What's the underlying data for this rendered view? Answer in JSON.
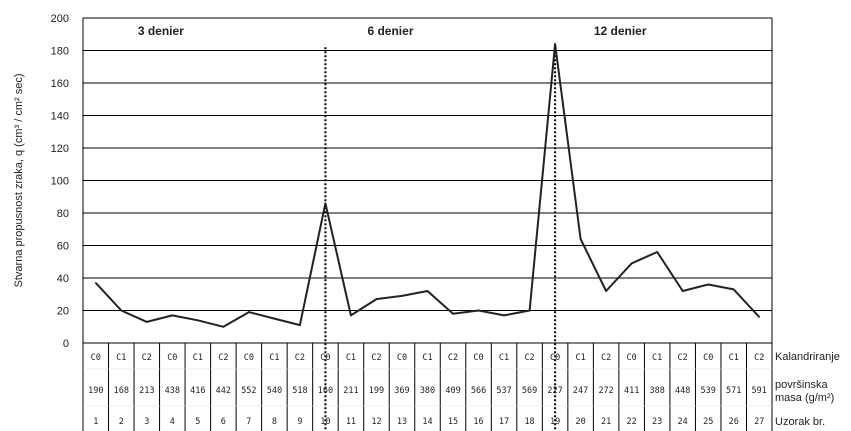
{
  "chart_data": {
    "type": "line",
    "ylabel": "Stvarna propusnost zraka, q (cm³ / cm² sec)",
    "ylim": [
      0,
      200
    ],
    "yticks": [
      0,
      20,
      40,
      60,
      80,
      100,
      120,
      140,
      160,
      180,
      200
    ],
    "grid": true,
    "groups": [
      {
        "label": "3 denier",
        "start": 1,
        "end": 9
      },
      {
        "label": "6 denier",
        "start": 10,
        "end": 18
      },
      {
        "label": "12 denier",
        "start": 19,
        "end": 27
      }
    ],
    "x": [
      1,
      2,
      3,
      4,
      5,
      6,
      7,
      8,
      9,
      10,
      11,
      12,
      13,
      14,
      15,
      16,
      17,
      18,
      19,
      20,
      21,
      22,
      23,
      24,
      25,
      26,
      27
    ],
    "series": [
      {
        "values": [
          37,
          20,
          13,
          17,
          14,
          10,
          19,
          15,
          11,
          86,
          17,
          27,
          29,
          32,
          18,
          20,
          17,
          20,
          184,
          64,
          32,
          49,
          56,
          32,
          36,
          33,
          16
        ]
      }
    ],
    "table": {
      "row_labels": [
        "Kalandriranje",
        "površinska masa (g/m²)",
        "Uzorak br."
      ],
      "kalandriranje": [
        "C0",
        "C1",
        "C2",
        "C0",
        "C1",
        "C2",
        "C0",
        "C1",
        "C2",
        "C0",
        "C1",
        "C2",
        "C0",
        "C1",
        "C2",
        "C0",
        "C1",
        "C2",
        "C0",
        "C1",
        "C2",
        "C0",
        "C1",
        "C2",
        "C0",
        "C1",
        "C2"
      ],
      "masa": [
        "190",
        "168",
        "213",
        "438",
        "416",
        "442",
        "552",
        "540",
        "518",
        "160",
        "211",
        "199",
        "369",
        "380",
        "409",
        "566",
        "537",
        "569",
        "227",
        "247",
        "272",
        "411",
        "388",
        "448",
        "539",
        "571",
        "591"
      ],
      "uzorak": [
        "1",
        "2",
        "3",
        "4",
        "5",
        "6",
        "7",
        "8",
        "9",
        "10",
        "11",
        "12",
        "13",
        "14",
        "15",
        "16",
        "17",
        "18",
        "19",
        "20",
        "21",
        "22",
        "23",
        "24",
        "25",
        "26",
        "27"
      ]
    }
  }
}
